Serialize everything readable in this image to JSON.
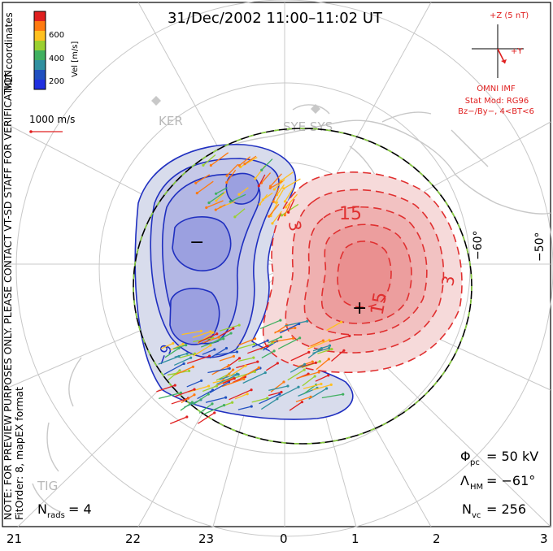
{
  "title": "31/Dec/2002 11:00–11:02 UT",
  "colorbar": {
    "label": "Vel [m/s]",
    "ticks": [
      "600",
      "400",
      "200"
    ],
    "colors": [
      "#e02020",
      "#ff7a10",
      "#ffc020",
      "#9ad030",
      "#40b060",
      "#3090a0",
      "#2050c0",
      "#2030e0"
    ]
  },
  "coords_label": "MLT coordinates",
  "ref_vector_label": "1000 m/s",
  "note_line1": "NOTE: FOR PREVIEW PURPOSES ONLY. PLEASE CONTACT VT-SD STAFF FOR VERIFICATION.",
  "note_line2": "FitOrder: 8, mapEX format",
  "imf": {
    "bz_label": "+Z (5 nT)",
    "by_label": "+Y",
    "source": "OMNI IMF",
    "stat_mod": "Stat Mod: RG96",
    "condition": "Bz−/By−, 4<BT<6"
  },
  "radar_labels": [
    "KER",
    "SYE SYS",
    "TIG"
  ],
  "lat_labels": [
    "−60°",
    "−50°"
  ],
  "contours": {
    "neg_label": "−9",
    "pos_label_top": "15",
    "pos_label_mid": "15",
    "pos_3a": "3",
    "pos_3b": "3",
    "neg_marker": "−",
    "pos_marker": "+"
  },
  "stats": {
    "phi_pc_sym": "Φ",
    "phi_pc_sub": "pc",
    "phi_pc_value": "= 50 kV",
    "lambda_sym": "Λ",
    "lambda_sub": "HM",
    "lambda_value": "= −61°",
    "nvc_sym": "N",
    "nvc_sub": "vc",
    "nvc_value": "= 256",
    "nrads_sym": "N",
    "nrads_sub": "rads",
    "nrads_value": "= 4"
  },
  "mlt_ticks": [
    "21",
    "22",
    "23",
    "0",
    "1",
    "2",
    "3"
  ],
  "colors": {
    "negative_cell": "#2030c0",
    "positive_cell": "#e03030",
    "boundary": "#000000",
    "boundary_dash": "#8ad040",
    "land": "#c8c8c8",
    "grid": "#c8c8c8"
  }
}
